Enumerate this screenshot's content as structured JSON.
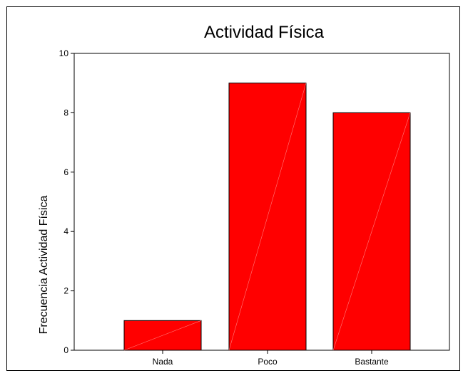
{
  "chart_data": {
    "type": "bar",
    "title": "Actividad Física",
    "ylabel": "Frecuencia Actividad Física",
    "xlabel": "",
    "categories": [
      "Nada",
      "Poco",
      "Bastante"
    ],
    "values": [
      1,
      9,
      8
    ],
    "ylim": [
      0,
      10
    ],
    "yticks": [
      "0",
      "2",
      "4",
      "6",
      "8",
      "10"
    ],
    "grid": false,
    "bar_color": "#ff0000"
  }
}
